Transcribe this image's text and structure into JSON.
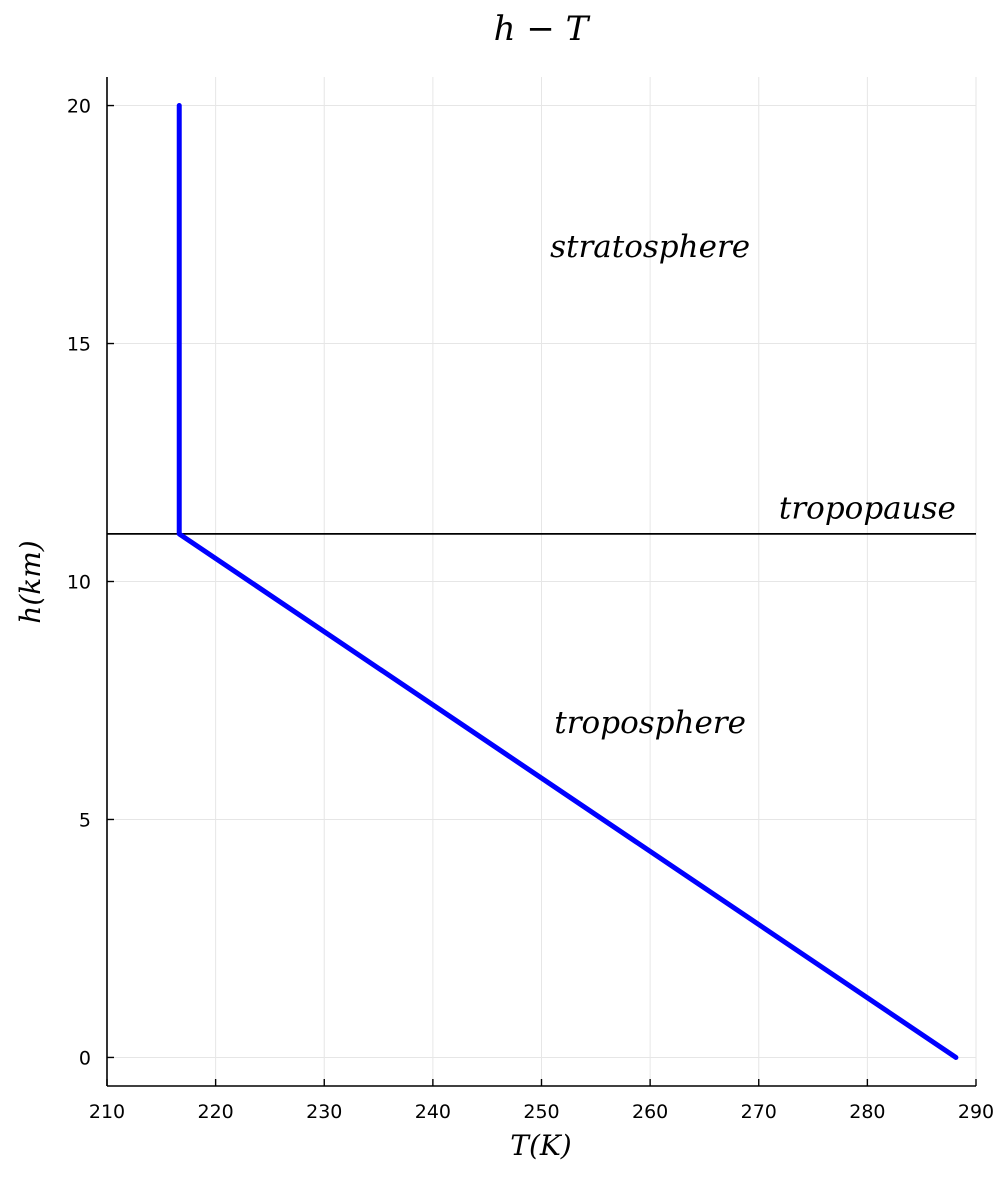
{
  "chart_data": {
    "type": "line",
    "title": "h − T",
    "xlabel": "T(K)",
    "ylabel": "h(km)",
    "xlim": [
      210,
      290
    ],
    "ylim": [
      -0.6,
      20.6
    ],
    "xticks": [
      210,
      220,
      230,
      240,
      250,
      260,
      270,
      280,
      290
    ],
    "yticks": [
      0,
      5,
      10,
      15,
      20
    ],
    "grid": true,
    "legend": "none",
    "series": [
      {
        "color": "#0000ff",
        "points": [
          {
            "x": 288.15,
            "y": 0
          },
          {
            "x": 216.65,
            "y": 11
          },
          {
            "x": 216.65,
            "y": 20
          }
        ]
      }
    ],
    "hline": {
      "y": 11,
      "color": "#000000"
    },
    "annotations": [
      {
        "text": "stratosphere",
        "x": 260,
        "y": 17
      },
      {
        "text": "tropopause",
        "x": 280,
        "y": 11.5
      },
      {
        "text": "troposphere",
        "x": 260,
        "y": 7
      }
    ]
  }
}
